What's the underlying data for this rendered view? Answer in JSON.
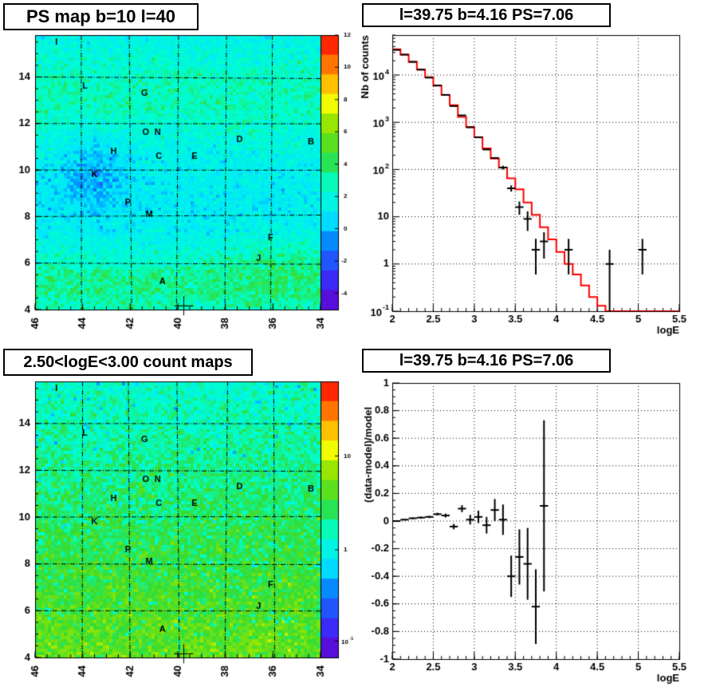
{
  "panels": {
    "ps_map": {
      "title": "PS map b=10 l=40",
      "x_ticks": [
        "46",
        "44",
        "42",
        "40",
        "38",
        "36",
        "34"
      ],
      "y_ticks": [
        "4",
        "6",
        "8",
        "10",
        "12",
        "14"
      ],
      "colorbar_ticks": [
        "12",
        "10",
        "8",
        "6",
        "4",
        "2",
        "0",
        "-2",
        "-4"
      ]
    },
    "spectrum": {
      "title": "l=39.75 b=4.16 PS=7.06",
      "ylabel": "Nb of counts",
      "xlabel": "logE",
      "x_ticks": [
        "2",
        "2.5",
        "3",
        "3.5",
        "4",
        "4.5",
        "5",
        "5.5"
      ],
      "y_ticks": [
        "10^-1",
        "1",
        "10",
        "10^2",
        "10^3",
        "10^4"
      ]
    },
    "count_map": {
      "title": "2.50<logE<3.00 count maps",
      "x_ticks": [
        "46",
        "44",
        "42",
        "40",
        "38",
        "36",
        "34"
      ],
      "y_ticks": [
        "4",
        "6",
        "8",
        "10",
        "12",
        "14"
      ],
      "colorbar_ticks": [
        "10",
        "1",
        "10^-1"
      ]
    },
    "residual": {
      "title": "l=39.75 b=4.16 PS=7.06",
      "ylabel": "(data-model)/model",
      "xlabel": "logE",
      "x_ticks": [
        "2",
        "2.5",
        "3",
        "3.5",
        "4",
        "4.5",
        "5",
        "5.5"
      ],
      "y_ticks": [
        "1",
        "0.8",
        "0.6",
        "0.4",
        "0.2",
        "0",
        "-0.2",
        "-0.4",
        "-0.6",
        "-0.8",
        "-1"
      ]
    }
  },
  "source_labels": [
    {
      "name": "I",
      "l": 45.1,
      "b": 15.5
    },
    {
      "name": "L",
      "l": 43.9,
      "b": 13.6
    },
    {
      "name": "G",
      "l": 41.4,
      "b": 13.3
    },
    {
      "name": "O",
      "l": 41.35,
      "b": 11.6
    },
    {
      "name": "N",
      "l": 40.85,
      "b": 11.6
    },
    {
      "name": "D",
      "l": 37.4,
      "b": 11.3
    },
    {
      "name": "B",
      "l": 34.4,
      "b": 11.2
    },
    {
      "name": "H",
      "l": 42.7,
      "b": 10.8
    },
    {
      "name": "C",
      "l": 40.8,
      "b": 10.6
    },
    {
      "name": "E",
      "l": 39.3,
      "b": 10.6
    },
    {
      "name": "K",
      "l": 43.5,
      "b": 9.8
    },
    {
      "name": "P",
      "l": 42.1,
      "b": 8.6
    },
    {
      "name": "M",
      "l": 41.2,
      "b": 8.1
    },
    {
      "name": "F",
      "l": 36.1,
      "b": 7.1
    },
    {
      "name": "J",
      "l": 36.6,
      "b": 6.2
    },
    {
      "name": "A",
      "l": 40.65,
      "b": 5.2
    }
  ],
  "chart_data": [
    {
      "type": "heatmap",
      "title": "PS map b=10 l=40",
      "xlim": [
        46,
        34
      ],
      "ylim": [
        4,
        15.8
      ],
      "zlim": [
        -5,
        12
      ],
      "grid": true,
      "marker": {
        "l": 39.75,
        "b": 4.16
      }
    },
    {
      "type": "line",
      "title": "l=39.75 b=4.16 PS=7.06",
      "xlabel": "logE",
      "ylabel": "Nb of counts",
      "xlim": [
        2,
        5.5
      ],
      "ylim": [
        0.1,
        70000
      ],
      "yscale": "log",
      "grid": true,
      "series": [
        {
          "line_color": "#ff0000",
          "type": "step",
          "x": [
            2.0,
            2.1,
            2.2,
            2.3,
            2.4,
            2.5,
            2.6,
            2.7,
            2.8,
            2.9,
            3.0,
            3.1,
            3.2,
            3.3,
            3.4,
            3.5,
            3.6,
            3.7,
            3.8,
            3.9,
            4.0,
            4.1,
            4.2,
            4.3,
            4.4,
            4.5,
            4.6,
            4.7,
            4.8,
            4.9,
            5.0,
            5.1,
            5.2,
            5.3,
            5.4
          ],
          "y": [
            35000,
            27000,
            19000,
            13000,
            9000,
            6000,
            3800,
            2300,
            1300,
            800,
            480,
            280,
            170,
            110,
            65,
            38,
            20,
            11,
            6,
            3.3,
            1.8,
            1.0,
            0.6,
            0.35,
            0.2,
            0.13,
            0.1,
            0.1,
            0.1,
            0.1,
            0.1,
            0.1,
            0.1,
            0.1,
            0.1
          ]
        },
        {
          "line_color": "#000000",
          "type": "errorbar",
          "x": [
            2.05,
            2.15,
            2.25,
            2.35,
            2.45,
            2.55,
            2.65,
            2.75,
            2.85,
            2.95,
            3.05,
            3.15,
            3.25,
            3.35,
            3.45,
            3.55,
            3.65,
            3.75,
            3.85,
            4.15,
            4.65,
            5.05
          ],
          "y": [
            34000,
            27000,
            19000,
            13000,
            8800,
            6000,
            3800,
            2200,
            1400,
            780,
            480,
            265,
            175,
            110,
            40,
            16,
            9,
            2,
            3,
            2,
            1,
            2
          ],
          "yerr": [
            0,
            0,
            0,
            0,
            0,
            0,
            0,
            0,
            0,
            0,
            0,
            0,
            0,
            10,
            6,
            5,
            4,
            1.4,
            1.7,
            1.4,
            1.0,
            1.4
          ]
        }
      ]
    },
    {
      "type": "heatmap",
      "title": "2.50<logE<3.00 count maps",
      "xlim": [
        46,
        34
      ],
      "ylim": [
        4,
        15.8
      ],
      "zscale": "log",
      "zlim": [
        0.07,
        40
      ],
      "grid": true,
      "marker": {
        "l": 39.75,
        "b": 4.16
      }
    },
    {
      "type": "scatter",
      "title": "l=39.75 b=4.16 PS=7.06",
      "xlabel": "logE",
      "ylabel": "(data-model)/model",
      "xlim": [
        2,
        5.5
      ],
      "ylim": [
        -1,
        1
      ],
      "grid": true,
      "series": [
        {
          "x": [
            2.05,
            2.15,
            2.25,
            2.35,
            2.45,
            2.55,
            2.65,
            2.75,
            2.85,
            2.95,
            3.05,
            3.15,
            3.25,
            3.35,
            3.45,
            3.55,
            3.65,
            3.75,
            3.85
          ],
          "y": [
            0.0,
            0.01,
            0.02,
            0.025,
            0.03,
            0.05,
            0.04,
            -0.04,
            0.09,
            0.01,
            0.03,
            -0.03,
            0.08,
            0.01,
            -0.4,
            -0.26,
            -0.31,
            -0.62,
            0.11
          ],
          "yerr": [
            0.005,
            0.005,
            0.006,
            0.007,
            0.008,
            0.01,
            0.014,
            0.02,
            0.025,
            0.035,
            0.045,
            0.06,
            0.08,
            0.11,
            0.15,
            0.2,
            0.26,
            0.27,
            0.62
          ]
        }
      ]
    }
  ]
}
